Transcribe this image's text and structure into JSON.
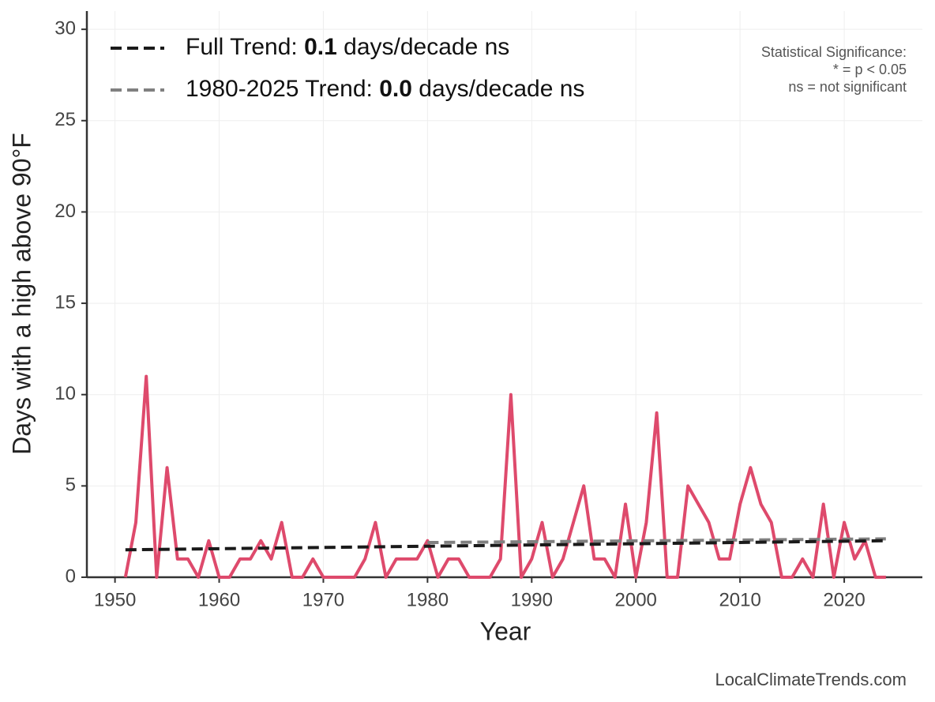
{
  "chart_data": {
    "type": "line",
    "xlabel": "Year",
    "ylabel": "Days with a high above 90°F",
    "x": [
      1951,
      1952,
      1953,
      1954,
      1955,
      1956,
      1957,
      1958,
      1959,
      1960,
      1961,
      1962,
      1963,
      1964,
      1965,
      1966,
      1967,
      1968,
      1969,
      1970,
      1971,
      1972,
      1973,
      1974,
      1975,
      1976,
      1977,
      1978,
      1979,
      1980,
      1981,
      1982,
      1983,
      1984,
      1985,
      1986,
      1987,
      1988,
      1989,
      1990,
      1991,
      1992,
      1993,
      1994,
      1995,
      1996,
      1997,
      1998,
      1999,
      2000,
      2001,
      2002,
      2003,
      2004,
      2005,
      2006,
      2007,
      2008,
      2009,
      2010,
      2011,
      2012,
      2013,
      2014,
      2015,
      2016,
      2017,
      2018,
      2019,
      2020,
      2021,
      2022,
      2023,
      2024
    ],
    "series": [
      {
        "color": "#de4a6c",
        "values": [
          0,
          3,
          11,
          0,
          6,
          1,
          1,
          0,
          2,
          0,
          0,
          1,
          1,
          2,
          1,
          3,
          0,
          0,
          1,
          0,
          0,
          0,
          0,
          1,
          3,
          0,
          1,
          1,
          1,
          2,
          0,
          1,
          1,
          0,
          0,
          0,
          1,
          10,
          0,
          1,
          3,
          0,
          1,
          3,
          5,
          1,
          1,
          0,
          4,
          0,
          3,
          9,
          0,
          0,
          5,
          4,
          3,
          1,
          1,
          4,
          6,
          4,
          3,
          0,
          0,
          1,
          0,
          4,
          0,
          3,
          1,
          2,
          0,
          0
        ]
      }
    ],
    "trends": [
      {
        "color": "#1a1a1a",
        "x": [
          1951,
          2024
        ],
        "values": [
          1.5,
          2.0
        ]
      },
      {
        "color": "#808080",
        "x": [
          1980,
          2024
        ],
        "values": [
          1.9,
          2.1
        ]
      }
    ],
    "legend": [
      {
        "label": "Full Trend:",
        "trend": "0.1",
        "unit": "days/decade ns"
      },
      {
        "label": "1980-2025 Trend:",
        "trend": "0.0",
        "unit": "days/decade ns"
      }
    ],
    "annotation": [
      "Statistical Significance:",
      "* = p < 0.05",
      "ns = not significant"
    ],
    "source": "LocalClimateTrends.com",
    "xlim": [
      1947.3,
      2027.5
    ],
    "ylim": [
      0,
      31
    ],
    "xticks": [
      1950,
      1960,
      1970,
      1980,
      1990,
      2000,
      2010,
      2020
    ],
    "yticks": [
      0,
      5,
      10,
      15,
      20,
      25,
      30
    ],
    "grid": true
  }
}
